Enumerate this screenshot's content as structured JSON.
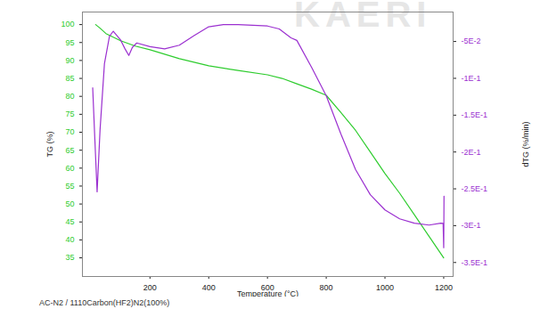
{
  "chart_data": {
    "type": "line",
    "annotations": [
      "KAERI"
    ],
    "caption": "AC-N2 / 1110Carbon(HF2)N2(100%)",
    "xlabel": "Temperature (°C)",
    "ylabel": "TG (%)",
    "y2label": "dTG (%/min)",
    "xlim": [
      -30,
      1232
    ],
    "xticks": [
      200,
      400,
      600,
      800,
      1000,
      1200
    ],
    "ylim": [
      29.8,
      103.5
    ],
    "yticks": [
      35,
      40,
      45,
      50,
      55,
      60,
      65,
      70,
      75,
      80,
      85,
      90,
      95,
      100
    ],
    "y2lim": [
      -0.369,
      -0.01
    ],
    "y2ticks": [
      {
        "value": -0.35,
        "label": "-3.5E-1"
      },
      {
        "value": -0.3,
        "label": "-3E-1"
      },
      {
        "value": -0.25,
        "label": "-2.5E-1"
      },
      {
        "value": -0.2,
        "label": "-2E-1"
      },
      {
        "value": -0.15,
        "label": "-1.5E-1"
      },
      {
        "value": -0.1,
        "label": "-1E-1"
      },
      {
        "value": -0.05,
        "label": "-5E-2"
      }
    ],
    "series": [
      {
        "color": "#2ecc2e",
        "x": [
          15,
          30,
          50,
          100,
          150,
          200,
          300,
          400,
          500,
          600,
          650,
          700,
          750,
          800,
          850,
          900,
          950,
          1000,
          1050,
          1100,
          1150,
          1200
        ],
        "values": [
          100,
          99,
          97.5,
          95.5,
          94,
          93,
          90.5,
          88.5,
          87.2,
          86,
          85,
          83.5,
          82,
          80.3,
          75.5,
          70.5,
          64.5,
          58.5,
          53,
          47,
          41,
          35
        ]
      },
      {
        "color": "#9b30d0",
        "axis": "y2",
        "x": [
          5,
          12,
          20,
          30,
          45,
          62,
          75,
          100,
          115,
          128,
          140,
          155,
          200,
          250,
          300,
          350,
          400,
          450,
          500,
          550,
          600,
          640,
          680,
          700,
          750,
          800,
          850,
          900,
          950,
          1000,
          1050,
          1100,
          1150,
          1190,
          1198,
          1200,
          1201
        ],
        "values": [
          -0.113,
          -0.18,
          -0.254,
          -0.17,
          -0.08,
          -0.043,
          -0.036,
          -0.048,
          -0.06,
          -0.069,
          -0.058,
          -0.052,
          -0.057,
          -0.06,
          -0.055,
          -0.042,
          -0.03,
          -0.027,
          -0.027,
          -0.028,
          -0.029,
          -0.033,
          -0.045,
          -0.0485,
          -0.085,
          -0.1236,
          -0.1757,
          -0.224,
          -0.258,
          -0.2786,
          -0.2907,
          -0.2967,
          -0.2992,
          -0.2967,
          -0.297,
          -0.33,
          -0.26
        ]
      }
    ]
  }
}
